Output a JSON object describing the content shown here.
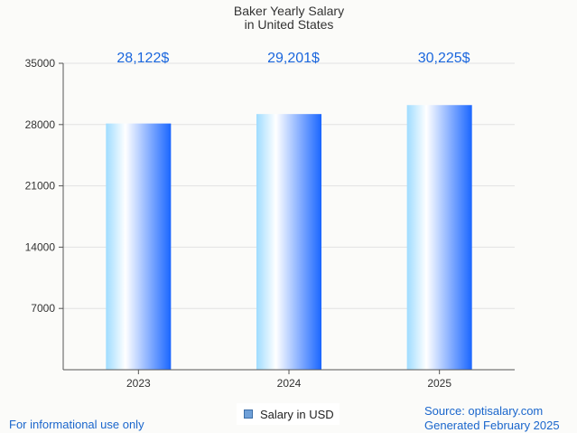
{
  "chart_data": {
    "type": "bar",
    "title": "Baker Yearly Salary",
    "subtitle": "in United States",
    "categories": [
      "2023",
      "2024",
      "2025"
    ],
    "values": [
      28122,
      29201,
      30225
    ],
    "value_labels": [
      "28,122$",
      "29,201$",
      "30,225$"
    ],
    "ylim": [
      0,
      35000
    ],
    "yticks": [
      7000,
      14000,
      21000,
      28000,
      35000
    ],
    "xlabel": "",
    "ylabel": "",
    "grid": true,
    "legend": {
      "label": "Salary in USD",
      "placement": "bottom-center"
    },
    "colors": {
      "bar_edge": "#1a66ff",
      "bar_light": "#9fdcff",
      "bar_white": "#ffffff",
      "value_label": "#1a66dd",
      "grid": "#e2e2e2",
      "axis": "#555555",
      "text": "#333333"
    }
  },
  "footer": {
    "disclaimer": "For informational use only",
    "source": "Source: optisalary.com",
    "generated": "Generated February 2025"
  }
}
